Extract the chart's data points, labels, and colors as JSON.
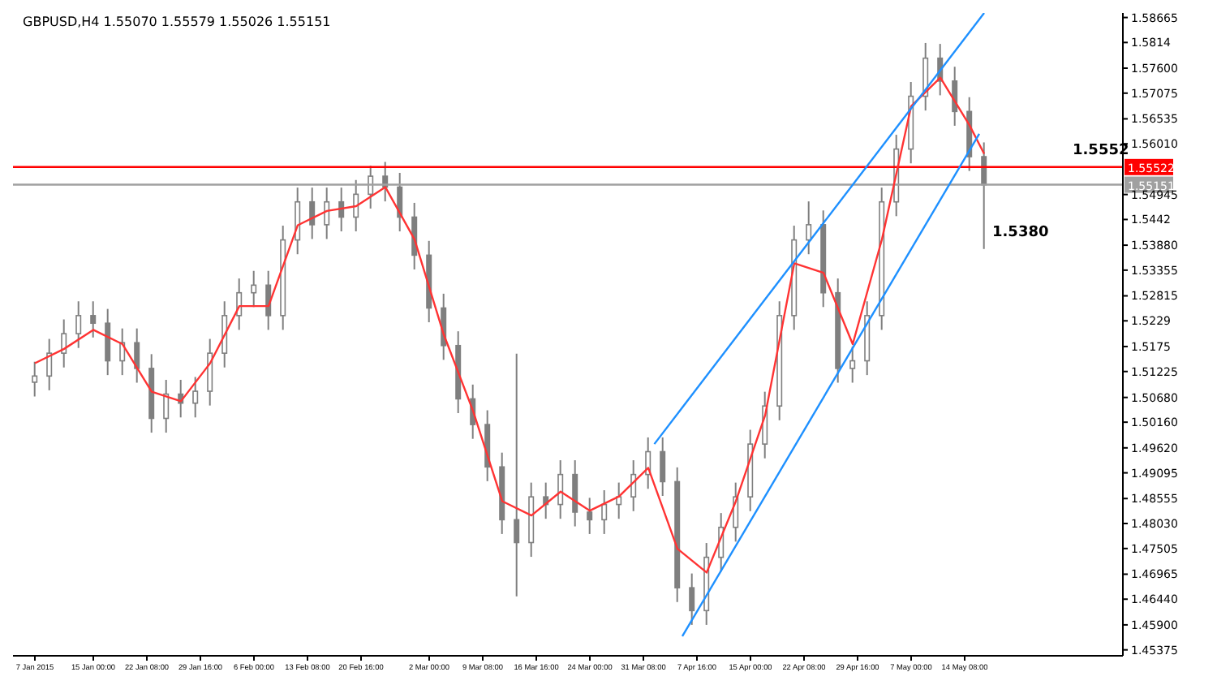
{
  "chart_data": {
    "type": "candlestick",
    "title": "GBPUSD,H4  1.55070 1.55579 1.55026 1.55151",
    "xlim": [
      "2015-01-04T00:00",
      "2015-06-05T00:00"
    ],
    "xticks": [
      {
        "value": "2015-01-07T00:00",
        "label": "7 Jan 2015"
      },
      {
        "value": "2015-01-15T00:00",
        "label": "15 Jan 00:00"
      },
      {
        "value": "2015-01-22T08:00",
        "label": "22 Jan 08:00"
      },
      {
        "value": "2015-01-29T16:00",
        "label": "29 Jan 16:00"
      },
      {
        "value": "2015-02-06T00:00",
        "label": "6 Feb 00:00"
      },
      {
        "value": "2015-02-13T08:00",
        "label": "13 Feb 08:00"
      },
      {
        "value": "2015-02-20T16:00",
        "label": "20 Feb 16:00"
      },
      {
        "value": "2015-03-02T00:00",
        "label": "2 Mar 00:00"
      },
      {
        "value": "2015-03-09T08:00",
        "label": "9 Mar 08:00"
      },
      {
        "value": "2015-03-16T16:00",
        "label": "16 Mar 16:00"
      },
      {
        "value": "2015-03-24T00:00",
        "label": "24 Mar 00:00"
      },
      {
        "value": "2015-03-31T08:00",
        "label": "31 Mar 08:00"
      },
      {
        "value": "2015-04-07T16:00",
        "label": "7 Apr 16:00"
      },
      {
        "value": "2015-04-15T00:00",
        "label": "15 Apr 00:00"
      },
      {
        "value": "2015-04-22T08:00",
        "label": "22 Apr 08:00"
      },
      {
        "value": "2015-04-29T16:00",
        "label": "29 Apr 16:00"
      },
      {
        "value": "2015-05-07T00:00",
        "label": "7 May 00:00"
      },
      {
        "value": "2015-05-14T08:00",
        "label": "14 May 08:00"
      }
    ],
    "ylim": [
      1.4525,
      1.5876
    ],
    "yticks": [
      1.58665,
      1.5814,
      {
        "value": 1.576,
        "label": "1.57600"
      },
      1.57075,
      1.56535,
      {
        "value": 1.5601,
        "label": "1.56010"
      },
      1.54945,
      1.5442,
      {
        "value": 1.5388,
        "label": "1.53880"
      },
      1.53355,
      1.52815,
      1.5229,
      1.5175,
      1.51225,
      {
        "value": 1.5068,
        "label": "1.50680"
      },
      {
        "value": 1.5016,
        "label": "1.50160"
      },
      {
        "value": 1.4962,
        "label": "1.49620"
      },
      1.49095,
      1.48555,
      {
        "value": 1.4803,
        "label": "1.48030"
      },
      1.47505,
      1.46965,
      {
        "value": 1.4644,
        "label": "1.46440"
      },
      {
        "value": 1.459,
        "label": "1.45900"
      },
      1.45375
    ],
    "ref_lines": [
      {
        "axis": "y",
        "value": 1.55522,
        "label": "1.55522",
        "color": "#ff0000"
      },
      {
        "axis": "y",
        "value": 1.55151,
        "label": "1.55151",
        "color": "#a0a0a0"
      }
    ],
    "annotations": [
      {
        "text": "1.5552",
        "x": "2015-05-28T00:00",
        "y": 1.5552
      },
      {
        "text": "1.5380",
        "x": "2015-05-17T00:00",
        "y": 1.538
      }
    ],
    "series": [
      {
        "type": "candlestick",
        "color": "#7f7f7f",
        "x": [
          "2015-01-07",
          "2015-01-09",
          "2015-01-11",
          "2015-01-13",
          "2015-01-15",
          "2015-01-17",
          "2015-01-19",
          "2015-01-21",
          "2015-01-23",
          "2015-01-25",
          "2015-01-27",
          "2015-01-29",
          "2015-01-31",
          "2015-02-02",
          "2015-02-04",
          "2015-02-06",
          "2015-02-08",
          "2015-02-10",
          "2015-02-12",
          "2015-02-14",
          "2015-02-16",
          "2015-02-18",
          "2015-02-20",
          "2015-02-22",
          "2015-02-24",
          "2015-02-26",
          "2015-02-28",
          "2015-03-02",
          "2015-03-04",
          "2015-03-06",
          "2015-03-08",
          "2015-03-10",
          "2015-03-12",
          "2015-03-14",
          "2015-03-16",
          "2015-03-18",
          "2015-03-20",
          "2015-03-22",
          "2015-03-24",
          "2015-03-26",
          "2015-03-28",
          "2015-03-30",
          "2015-04-01",
          "2015-04-03",
          "2015-04-05",
          "2015-04-07",
          "2015-04-09",
          "2015-04-11",
          "2015-04-13",
          "2015-04-15",
          "2015-04-17",
          "2015-04-19",
          "2015-04-21",
          "2015-04-23",
          "2015-04-25",
          "2015-04-27",
          "2015-04-29",
          "2015-05-01",
          "2015-05-03",
          "2015-05-05",
          "2015-05-07",
          "2015-05-09",
          "2015-05-11",
          "2015-05-13",
          "2015-05-15",
          "2015-05-17"
        ],
        "ohlc": [
          [
            1.51,
            1.5143,
            1.507,
            1.5113
          ],
          [
            1.5113,
            1.5191,
            1.5083,
            1.5161
          ],
          [
            1.5161,
            1.5232,
            1.5131,
            1.5202
          ],
          [
            1.5202,
            1.527,
            1.5172,
            1.524
          ],
          [
            1.524,
            1.527,
            1.5194,
            1.5224
          ],
          [
            1.5224,
            1.5254,
            1.5115,
            1.5145
          ],
          [
            1.5145,
            1.5213,
            1.5115,
            1.5183
          ],
          [
            1.5183,
            1.5213,
            1.5099,
            1.5129
          ],
          [
            1.5129,
            1.5159,
            1.4994,
            1.5024
          ],
          [
            1.5024,
            1.5105,
            1.4994,
            1.5075
          ],
          [
            1.5075,
            1.5105,
            1.5026,
            1.5056
          ],
          [
            1.5056,
            1.5111,
            1.5026,
            1.5081
          ],
          [
            1.5081,
            1.5191,
            1.5051,
            1.5161
          ],
          [
            1.5161,
            1.527,
            1.5131,
            1.524
          ],
          [
            1.524,
            1.5318,
            1.521,
            1.5288
          ],
          [
            1.5288,
            1.5334,
            1.5258,
            1.5304
          ],
          [
            1.5304,
            1.5334,
            1.521,
            1.524
          ],
          [
            1.524,
            1.5429,
            1.521,
            1.5399
          ],
          [
            1.5399,
            1.5509,
            1.5369,
            1.5479
          ],
          [
            1.5479,
            1.5509,
            1.5401,
            1.5431
          ],
          [
            1.5431,
            1.5509,
            1.5401,
            1.5479
          ],
          [
            1.5479,
            1.5509,
            1.5417,
            1.5447
          ],
          [
            1.5447,
            1.5525,
            1.5417,
            1.5495
          ],
          [
            1.5495,
            1.5555,
            1.5465,
            1.5533
          ],
          [
            1.5533,
            1.5563,
            1.548,
            1.551
          ],
          [
            1.551,
            1.554,
            1.5417,
            1.5447
          ],
          [
            1.5447,
            1.5477,
            1.5337,
            1.5367
          ],
          [
            1.5367,
            1.5397,
            1.5226,
            1.5256
          ],
          [
            1.5256,
            1.5286,
            1.5147,
            1.5177
          ],
          [
            1.5177,
            1.5207,
            1.5035,
            1.5065
          ],
          [
            1.5065,
            1.5095,
            1.4981,
            1.5011
          ],
          [
            1.5011,
            1.5041,
            1.4892,
            1.4922
          ],
          [
            1.4922,
            1.4952,
            1.4781,
            1.4811
          ],
          [
            1.4811,
            1.516,
            1.465,
            1.4763
          ],
          [
            1.4763,
            1.4889,
            1.4733,
            1.4859
          ],
          [
            1.4859,
            1.4889,
            1.4813,
            1.4843
          ],
          [
            1.4843,
            1.4936,
            1.4813,
            1.4906
          ],
          [
            1.4906,
            1.4936,
            1.4797,
            1.4827
          ],
          [
            1.4827,
            1.4857,
            1.4781,
            1.4811
          ],
          [
            1.4811,
            1.4873,
            1.4781,
            1.4843
          ],
          [
            1.4843,
            1.4889,
            1.4813,
            1.4859
          ],
          [
            1.4859,
            1.4936,
            1.4829,
            1.4906
          ],
          [
            1.4906,
            1.4984,
            1.4876,
            1.4954
          ],
          [
            1.4954,
            1.4984,
            1.4861,
            1.4891
          ],
          [
            1.4891,
            1.4921,
            1.4638,
            1.4668
          ],
          [
            1.4668,
            1.4698,
            1.459,
            1.462
          ],
          [
            1.462,
            1.4762,
            1.459,
            1.4732
          ],
          [
            1.4732,
            1.4825,
            1.4702,
            1.4795
          ],
          [
            1.4795,
            1.4889,
            1.4765,
            1.4859
          ],
          [
            1.4859,
            1.5,
            1.4829,
            1.497
          ],
          [
            1.497,
            1.508,
            1.494,
            1.505
          ],
          [
            1.505,
            1.527,
            1.502,
            1.524
          ],
          [
            1.524,
            1.5429,
            1.521,
            1.5399
          ],
          [
            1.5399,
            1.548,
            1.5369,
            1.5431
          ],
          [
            1.5431,
            1.5461,
            1.5258,
            1.5288
          ],
          [
            1.5288,
            1.5318,
            1.5099,
            1.5129
          ],
          [
            1.5129,
            1.5175,
            1.5099,
            1.5145
          ],
          [
            1.5145,
            1.527,
            1.5115,
            1.524
          ],
          [
            1.524,
            1.5509,
            1.521,
            1.5479
          ],
          [
            1.5479,
            1.562,
            1.5449,
            1.559
          ],
          [
            1.559,
            1.5731,
            1.556,
            1.5701
          ],
          [
            1.5701,
            1.5813,
            1.5671,
            1.5781
          ],
          [
            1.5781,
            1.5811,
            1.5703,
            1.5733
          ],
          [
            1.5733,
            1.5763,
            1.5639,
            1.5669
          ],
          [
            1.5669,
            1.5699,
            1.5544,
            1.5574
          ],
          [
            1.5574,
            1.5604,
            1.538,
            1.5515
          ]
        ]
      },
      {
        "type": "line",
        "color": "#ff3333",
        "x": [
          "2015-01-07",
          "2015-01-11",
          "2015-01-15",
          "2015-01-19",
          "2015-01-23",
          "2015-01-27",
          "2015-01-31",
          "2015-02-04",
          "2015-02-08",
          "2015-02-12",
          "2015-02-16",
          "2015-02-20",
          "2015-02-24",
          "2015-02-28",
          "2015-03-04",
          "2015-03-08",
          "2015-03-12",
          "2015-03-16",
          "2015-03-20",
          "2015-03-24",
          "2015-03-28",
          "2015-04-01",
          "2015-04-05",
          "2015-04-09",
          "2015-04-13",
          "2015-04-17",
          "2015-04-21",
          "2015-04-25",
          "2015-04-29",
          "2015-05-03",
          "2015-05-07",
          "2015-05-11",
          "2015-05-15",
          "2015-05-17"
        ],
        "values": [
          1.514,
          1.517,
          1.521,
          1.518,
          1.508,
          1.506,
          1.514,
          1.526,
          1.526,
          1.543,
          1.546,
          1.547,
          1.551,
          1.54,
          1.52,
          1.504,
          1.485,
          1.482,
          1.487,
          1.483,
          1.486,
          1.492,
          1.475,
          1.47,
          1.485,
          1.503,
          1.535,
          1.533,
          1.518,
          1.54,
          1.568,
          1.574,
          1.564,
          1.558
        ]
      },
      {
        "type": "line",
        "color": "#1e90ff",
        "x": [
          "2015-04-01T20:00",
          "2015-05-17T00:00"
        ],
        "values": [
          1.497,
          1.5876
        ]
      },
      {
        "type": "line",
        "color": "#1e90ff",
        "x": [
          "2015-04-05T16:00",
          "2015-05-16T08:00"
        ],
        "values": [
          1.4566,
          1.5622
        ]
      }
    ]
  }
}
